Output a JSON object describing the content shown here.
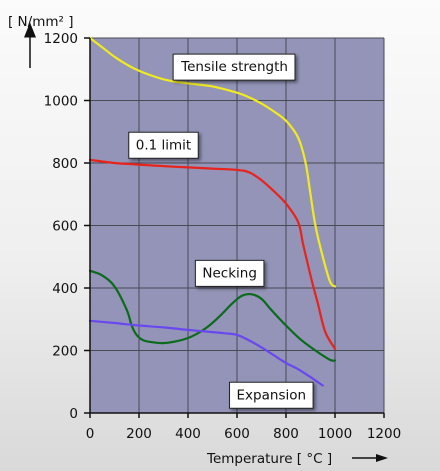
{
  "chart_data": {
    "type": "line",
    "ylabel": "[ N/mm² ]",
    "xlabel": "Temperature [ °C ]",
    "xlim": [
      0,
      1200
    ],
    "ylim": [
      0,
      1200
    ],
    "xticks": [
      0,
      200,
      400,
      600,
      800,
      1000,
      1200
    ],
    "yticks": [
      0,
      200,
      400,
      600,
      800,
      1000,
      1200
    ],
    "grid": true,
    "plot_background": "#9394b7",
    "series": [
      {
        "name": "Tensile strength",
        "color": "#f0ea20",
        "x": [
          0,
          50,
          100,
          150,
          200,
          250,
          300,
          350,
          400,
          500,
          600,
          650,
          700,
          750,
          800,
          850,
          880,
          900,
          920,
          950,
          980,
          1000
        ],
        "y": [
          1200,
          1170,
          1140,
          1115,
          1095,
          1080,
          1068,
          1060,
          1055,
          1045,
          1025,
          1010,
          990,
          965,
          935,
          880,
          800,
          700,
          600,
          500,
          420,
          405
        ]
      },
      {
        "name": "0.1 limit",
        "color": "#e8231c",
        "x": [
          0,
          100,
          200,
          300,
          400,
          500,
          600,
          650,
          700,
          750,
          800,
          850,
          870,
          900,
          930,
          960,
          1000
        ],
        "y": [
          810,
          800,
          795,
          790,
          786,
          782,
          778,
          770,
          745,
          710,
          670,
          610,
          540,
          440,
          350,
          260,
          205
        ]
      },
      {
        "name": "Necking",
        "color": "#0b6a1c",
        "x": [
          0,
          50,
          100,
          150,
          170,
          190,
          220,
          270,
          320,
          400,
          470,
          530,
          580,
          620,
          660,
          700,
          740,
          800,
          860,
          920,
          980,
          1000
        ],
        "y": [
          455,
          440,
          405,
          330,
          280,
          250,
          232,
          225,
          225,
          240,
          270,
          310,
          350,
          375,
          380,
          365,
          330,
          280,
          235,
          200,
          170,
          168
        ]
      },
      {
        "name": "Expansion",
        "color": "#6a48f0",
        "x": [
          0,
          100,
          200,
          300,
          400,
          500,
          550,
          600,
          650,
          700,
          750,
          800,
          850,
          900,
          950
        ],
        "y": [
          295,
          288,
          280,
          274,
          266,
          259,
          255,
          250,
          232,
          210,
          185,
          160,
          140,
          115,
          88
        ]
      }
    ],
    "annotations": [
      {
        "text": "Tensile strength",
        "series": 0,
        "x": 590,
        "y": 1110
      },
      {
        "text": "0.1 limit",
        "series": 1,
        "x": 300,
        "y": 860
      },
      {
        "text": "Necking",
        "series": 2,
        "x": 570,
        "y": 450
      },
      {
        "text": "Expansion",
        "series": 3,
        "x": 740,
        "y": 60
      }
    ]
  }
}
